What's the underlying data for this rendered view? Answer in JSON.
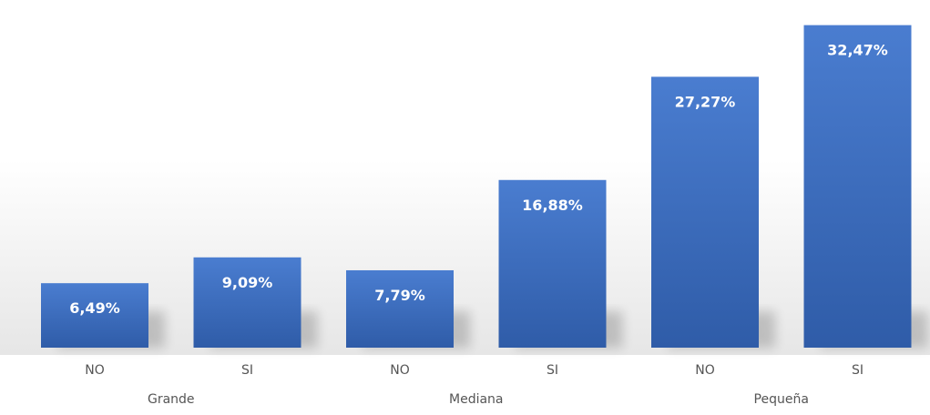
{
  "chart_data": {
    "type": "bar",
    "title": "",
    "xlabel": "",
    "ylabel": "",
    "groups": [
      {
        "label": "Grande",
        "categories": [
          "NO",
          "SI"
        ]
      },
      {
        "label": "Mediana",
        "categories": [
          "NO",
          "SI"
        ]
      },
      {
        "label": "Pequeña",
        "categories": [
          "NO",
          "SI"
        ]
      }
    ],
    "values": [
      6.49,
      9.09,
      7.79,
      16.88,
      27.27,
      32.47
    ],
    "data_labels": [
      "6,49%",
      "9,09%",
      "7,79%",
      "16,88%",
      "27,27%",
      "32,47%"
    ],
    "unit": "%",
    "ylim": [
      0,
      35
    ],
    "grid": false,
    "legend": "none",
    "colors": {
      "bar_top": "#4a7dd0",
      "bar_bottom": "#2f5ca8",
      "label_text": "#ffffff",
      "axis_text": "#555555",
      "background_top": "#ffffff",
      "background_bottom": "#e6e6e6"
    }
  }
}
